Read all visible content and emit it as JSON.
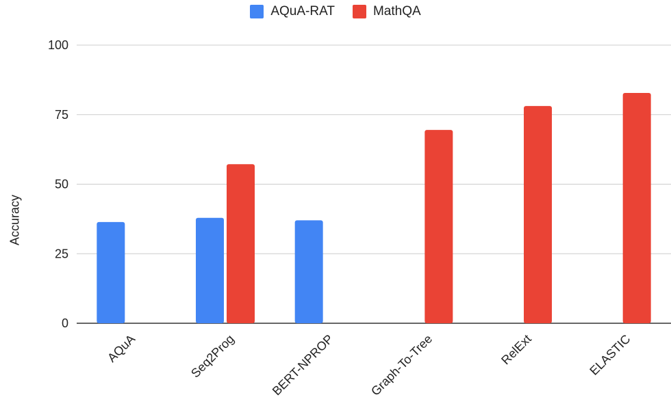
{
  "chart_data": {
    "type": "bar",
    "categories": [
      "AQuA",
      "Seq2Prog",
      "BERT-NPROP",
      "Graph-To-Tree",
      "RelExt",
      "ELASTIC"
    ],
    "series": [
      {
        "name": "AQuA-RAT",
        "color": "#4285f4",
        "values": [
          36.4,
          37.9,
          37.0,
          null,
          null,
          null
        ]
      },
      {
        "name": "MathQA",
        "color": "#ea4335",
        "values": [
          null,
          57.2,
          null,
          69.5,
          78.1,
          82.8
        ]
      }
    ],
    "title": "",
    "xlabel": "",
    "ylabel": "Accuracy",
    "ylim": [
      0,
      100
    ],
    "yticks": [
      "0",
      "25",
      "50",
      "75",
      "100"
    ],
    "grid": true,
    "legend_position": "top"
  }
}
